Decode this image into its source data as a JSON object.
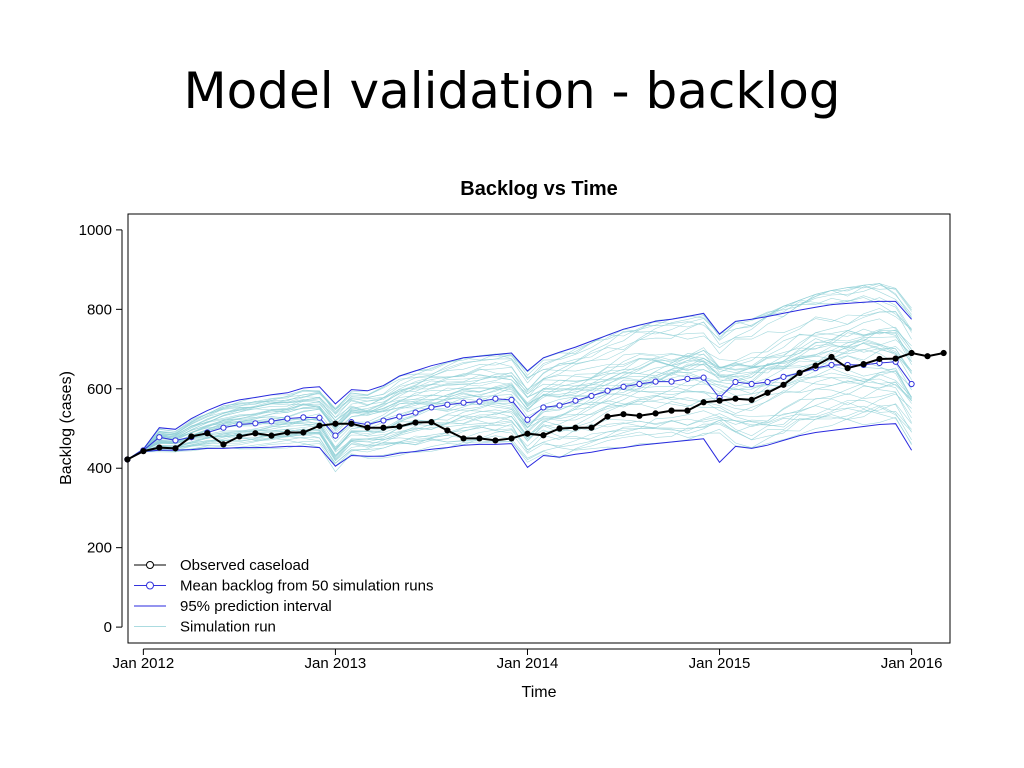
{
  "slide": {
    "title": "Model validation - backlog"
  },
  "colors": {
    "observed": "#000000",
    "mean": "#3333dd",
    "interval": "#2a2adf",
    "simulation": "#8fcfd6",
    "frame": "#000000"
  },
  "chart_data": {
    "type": "line",
    "title": "Backlog vs Time",
    "xlabel": "Time",
    "ylabel": "Backlog (cases)",
    "xlim": [
      2011.92,
      2016.2
    ],
    "ylim": [
      -40,
      1040
    ],
    "x_ticks": [
      {
        "value": 2012.0,
        "label": "Jan 2012"
      },
      {
        "value": 2013.0,
        "label": "Jan 2013"
      },
      {
        "value": 2014.0,
        "label": "Jan 2014"
      },
      {
        "value": 2015.0,
        "label": "Jan 2015"
      },
      {
        "value": 2016.0,
        "label": "Jan 2016"
      }
    ],
    "y_ticks": [
      {
        "value": 0,
        "label": "0"
      },
      {
        "value": 200,
        "label": "200"
      },
      {
        "value": 400,
        "label": "400"
      },
      {
        "value": 600,
        "label": "600"
      },
      {
        "value": 800,
        "label": "800"
      },
      {
        "value": 1000,
        "label": "1000"
      }
    ],
    "grid": false,
    "legend_position": "bottom-left",
    "legend": [
      {
        "label": "Observed caseload",
        "series": "observed"
      },
      {
        "label": "Mean backlog from 50 simulation runs",
        "series": "mean"
      },
      {
        "label": "95% prediction interval",
        "series": "interval"
      },
      {
        "label": "Simulation run",
        "series": "simulation"
      }
    ],
    "series": [
      {
        "name": "Observed caseload",
        "key": "observed",
        "x": [
          2011.917,
          2012.0,
          2012.083,
          2012.167,
          2012.25,
          2012.333,
          2012.417,
          2012.5,
          2012.583,
          2012.667,
          2012.75,
          2012.833,
          2012.917,
          2013.0,
          2013.083,
          2013.167,
          2013.25,
          2013.333,
          2013.417,
          2013.5,
          2013.583,
          2013.667,
          2013.75,
          2013.833,
          2013.917,
          2014.0,
          2014.083,
          2014.167,
          2014.25,
          2014.333,
          2014.417,
          2014.5,
          2014.583,
          2014.667,
          2014.75,
          2014.833,
          2014.917,
          2015.0,
          2015.083,
          2015.167,
          2015.25,
          2015.333,
          2015.417,
          2015.5,
          2015.583,
          2015.667,
          2015.75,
          2015.833,
          2015.917,
          2016.0,
          2016.083,
          2016.167
        ],
        "y": [
          422,
          443,
          452,
          450,
          480,
          488,
          460,
          480,
          488,
          482,
          490,
          490,
          507,
          512,
          512,
          502,
          502,
          505,
          515,
          516,
          495,
          475,
          475,
          470,
          475,
          487,
          483,
          500,
          502,
          502,
          530,
          536,
          532,
          538,
          545,
          545,
          566,
          570,
          575,
          572,
          590,
          610,
          640,
          658,
          680,
          652,
          662,
          675,
          676,
          690,
          682,
          690
        ]
      },
      {
        "name": "Mean backlog from 50 simulation runs",
        "key": "mean",
        "x": [
          2011.917,
          2012.0,
          2012.083,
          2012.167,
          2012.25,
          2012.333,
          2012.417,
          2012.5,
          2012.583,
          2012.667,
          2012.75,
          2012.833,
          2012.917,
          2013.0,
          2013.083,
          2013.167,
          2013.25,
          2013.333,
          2013.417,
          2013.5,
          2013.583,
          2013.667,
          2013.75,
          2013.833,
          2013.917,
          2014.0,
          2014.083,
          2014.167,
          2014.25,
          2014.333,
          2014.417,
          2014.5,
          2014.583,
          2014.667,
          2014.75,
          2014.833,
          2014.917,
          2015.0,
          2015.083,
          2015.167,
          2015.25,
          2015.333,
          2015.417,
          2015.5,
          2015.583,
          2015.667,
          2015.75,
          2015.833,
          2015.917,
          2016.0
        ],
        "y": [
          422,
          445,
          478,
          470,
          478,
          490,
          502,
          510,
          513,
          518,
          525,
          528,
          527,
          482,
          516,
          510,
          520,
          530,
          540,
          553,
          560,
          565,
          568,
          575,
          572,
          522,
          553,
          558,
          570,
          582,
          595,
          605,
          612,
          618,
          618,
          625,
          628,
          577,
          617,
          612,
          617,
          630,
          640,
          652,
          660,
          660,
          660,
          665,
          668,
          612
        ]
      },
      {
        "name": "95% prediction interval (upper)",
        "key": "interval",
        "x": [
          2011.917,
          2012.0,
          2012.083,
          2012.167,
          2012.25,
          2012.333,
          2012.417,
          2012.5,
          2012.583,
          2012.667,
          2012.75,
          2012.833,
          2012.917,
          2013.0,
          2013.083,
          2013.167,
          2013.25,
          2013.333,
          2013.417,
          2013.5,
          2013.583,
          2013.667,
          2013.75,
          2013.833,
          2013.917,
          2014.0,
          2014.083,
          2014.167,
          2014.25,
          2014.333,
          2014.417,
          2014.5,
          2014.583,
          2014.667,
          2014.75,
          2014.833,
          2014.917,
          2015.0,
          2015.083,
          2015.167,
          2015.25,
          2015.333,
          2015.417,
          2015.5,
          2015.583,
          2015.667,
          2015.75,
          2015.833,
          2015.917,
          2016.0
        ],
        "y": [
          422,
          448,
          502,
          498,
          525,
          545,
          562,
          572,
          578,
          585,
          590,
          602,
          605,
          562,
          598,
          595,
          608,
          632,
          645,
          658,
          668,
          678,
          682,
          686,
          690,
          645,
          678,
          692,
          705,
          720,
          735,
          750,
          760,
          770,
          775,
          782,
          790,
          738,
          770,
          775,
          782,
          790,
          798,
          805,
          812,
          815,
          818,
          820,
          820,
          775
        ]
      },
      {
        "name": "95% prediction interval (lower)",
        "key": "interval",
        "x": [
          2011.917,
          2012.0,
          2012.083,
          2012.167,
          2012.25,
          2012.333,
          2012.417,
          2012.5,
          2012.583,
          2012.667,
          2012.75,
          2012.833,
          2012.917,
          2013.0,
          2013.083,
          2013.167,
          2013.25,
          2013.333,
          2013.417,
          2013.5,
          2013.583,
          2013.667,
          2013.75,
          2013.833,
          2013.917,
          2014.0,
          2014.083,
          2014.167,
          2014.25,
          2014.333,
          2014.417,
          2014.5,
          2014.583,
          2014.667,
          2014.75,
          2014.833,
          2014.917,
          2015.0,
          2015.083,
          2015.167,
          2015.25,
          2015.333,
          2015.417,
          2015.5,
          2015.583,
          2015.667,
          2015.75,
          2015.833,
          2015.917,
          2016.0
        ],
        "y": [
          422,
          442,
          445,
          445,
          447,
          450,
          450,
          452,
          452,
          453,
          455,
          455,
          452,
          405,
          432,
          430,
          430,
          438,
          442,
          448,
          452,
          458,
          460,
          460,
          462,
          402,
          432,
          428,
          435,
          440,
          448,
          452,
          458,
          462,
          466,
          470,
          474,
          415,
          455,
          450,
          458,
          470,
          482,
          490,
          495,
          500,
          505,
          510,
          512,
          445
        ]
      }
    ],
    "simulation": {
      "name": "Simulation run",
      "runs": 50,
      "start": {
        "x": 2011.917,
        "y": 422
      },
      "x": [
        2012.0,
        2012.083,
        2012.167,
        2012.25,
        2012.333,
        2012.417,
        2012.5,
        2012.583,
        2012.667,
        2012.75,
        2012.833,
        2012.917,
        2013.0,
        2013.083,
        2013.167,
        2013.25,
        2013.333,
        2013.417,
        2013.5,
        2013.583,
        2013.667,
        2013.75,
        2013.833,
        2013.917,
        2014.0,
        2014.083,
        2014.167,
        2014.25,
        2014.333,
        2014.417,
        2014.5,
        2014.583,
        2014.667,
        2014.75,
        2014.833,
        2014.917,
        2015.0,
        2015.083,
        2015.167,
        2015.25,
        2015.333,
        2015.417,
        2015.5,
        2015.583,
        2015.667,
        2015.75,
        2015.833,
        2015.917,
        2016.0
      ],
      "range_low": [
        441,
        440,
        440,
        442,
        444,
        445,
        446,
        446,
        447,
        448,
        448,
        445,
        380,
        420,
        418,
        422,
        428,
        432,
        438,
        442,
        448,
        450,
        452,
        455,
        396,
        425,
        420,
        428,
        432,
        440,
        445,
        450,
        455,
        460,
        465,
        468,
        480,
        450,
        445,
        455,
        465,
        478,
        488,
        492,
        498,
        502,
        508,
        510,
        450
      ],
      "range_high": [
        450,
        505,
        500,
        530,
        550,
        567,
        577,
        583,
        590,
        595,
        607,
        610,
        565,
        600,
        598,
        612,
        637,
        650,
        662,
        672,
        682,
        688,
        692,
        695,
        648,
        682,
        696,
        710,
        726,
        742,
        756,
        768,
        778,
        782,
        790,
        796,
        744,
        776,
        782,
        800,
        815,
        830,
        845,
        855,
        862,
        868,
        872,
        860,
        810
      ]
    }
  }
}
